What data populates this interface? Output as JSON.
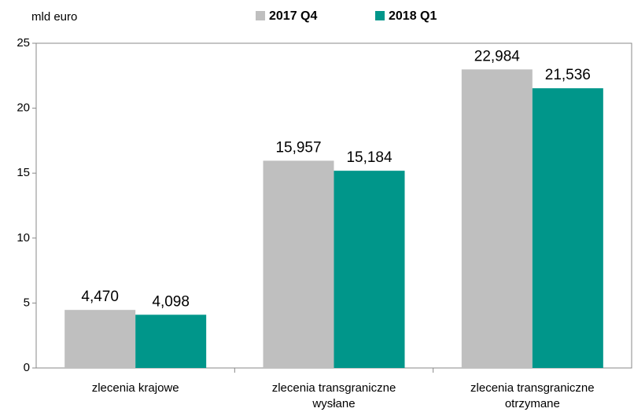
{
  "chart_data": {
    "type": "bar",
    "unit_label": "mld euro",
    "categories": [
      "zlecenia krajowe",
      "zlecenia transgraniczne\nwysłane",
      "zlecenia transgraniczne\notrzymane"
    ],
    "series": [
      {
        "name": "2017 Q4",
        "color": "#bfbfbf",
        "values": [
          4.47,
          15.957,
          22.984
        ],
        "value_labels": [
          "4,470",
          "15,957",
          "22,984"
        ]
      },
      {
        "name": "2018 Q1",
        "color": "#00968a",
        "values": [
          4.098,
          15.184,
          21.536
        ],
        "value_labels": [
          "4,098",
          "15,184",
          "21,536"
        ]
      }
    ],
    "ylim": [
      0,
      25
    ],
    "yticks": [
      0,
      5,
      10,
      15,
      20,
      25
    ],
    "legend": "top"
  }
}
